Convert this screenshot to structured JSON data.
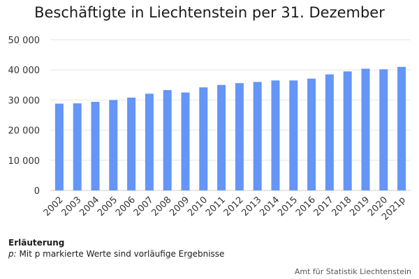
{
  "title": "Beschäftigte in Liechtenstein per 31. Dezember",
  "note": {
    "heading": "Erläuterung",
    "prefix": "p:",
    "text": "Mit p markierte Werte sind vorläufige Ergebnisse"
  },
  "source": "Amt für Statistik Liechtenstein",
  "colors": {
    "bar": "#6495f7",
    "grid": "#e6e6e6",
    "axis": "#cccccc"
  },
  "chart_data": {
    "type": "bar",
    "title": "Beschäftigte in Liechtenstein per 31. Dezember",
    "xlabel": "",
    "ylabel": "",
    "ylim": [
      0,
      50000
    ],
    "yticks": [
      0,
      10000,
      20000,
      30000,
      40000,
      50000
    ],
    "ytick_labels": [
      "0",
      "10 000",
      "20 000",
      "30 000",
      "40 000",
      "50 000"
    ],
    "grid": true,
    "categories": [
      "2002",
      "2003",
      "2004",
      "2005",
      "2006",
      "2007",
      "2008",
      "2009",
      "2010",
      "2011",
      "2012",
      "2013",
      "2014",
      "2015",
      "2016",
      "2017",
      "2018",
      "2019",
      "2020",
      "2021p"
    ],
    "values": [
      28800,
      28900,
      29400,
      30000,
      30800,
      32100,
      33300,
      32500,
      34200,
      35000,
      35600,
      36000,
      36500,
      36500,
      37100,
      38500,
      39500,
      40400,
      40200,
      41000
    ]
  }
}
